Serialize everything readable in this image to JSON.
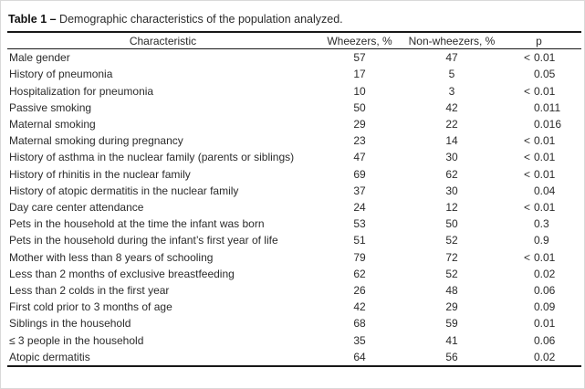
{
  "title": {
    "bold": "Table 1 –",
    "rest": " Demographic characteristics of the population analyzed."
  },
  "table": {
    "columns": [
      "Characteristic",
      "Wheezers, %",
      "Non-wheezers, %",
      "p"
    ],
    "rows": [
      {
        "characteristic": "Male gender",
        "wheezers": "57",
        "non_wheezers": "47",
        "p_prefix": "<",
        "p_value": "0.01"
      },
      {
        "characteristic": "History of pneumonia",
        "wheezers": "17",
        "non_wheezers": "5",
        "p_prefix": "",
        "p_value": "0.05"
      },
      {
        "characteristic": "Hospitalization for pneumonia",
        "wheezers": "10",
        "non_wheezers": "3",
        "p_prefix": "<",
        "p_value": "0.01"
      },
      {
        "characteristic": "Passive smoking",
        "wheezers": "50",
        "non_wheezers": "42",
        "p_prefix": "",
        "p_value": "0.011"
      },
      {
        "characteristic": "Maternal smoking",
        "wheezers": "29",
        "non_wheezers": "22",
        "p_prefix": "",
        "p_value": "0.016"
      },
      {
        "characteristic": "Maternal smoking during pregnancy",
        "wheezers": "23",
        "non_wheezers": "14",
        "p_prefix": "<",
        "p_value": "0.01"
      },
      {
        "characteristic": "History of asthma in the nuclear family (parents or siblings)",
        "wheezers": "47",
        "non_wheezers": "30",
        "p_prefix": "<",
        "p_value": "0.01"
      },
      {
        "characteristic": "History of rhinitis in the nuclear family",
        "wheezers": "69",
        "non_wheezers": "62",
        "p_prefix": "<",
        "p_value": "0.01"
      },
      {
        "characteristic": "History of atopic dermatitis in the nuclear family",
        "wheezers": "37",
        "non_wheezers": "30",
        "p_prefix": "",
        "p_value": "0.04"
      },
      {
        "characteristic": "Day care center attendance",
        "wheezers": "24",
        "non_wheezers": "12",
        "p_prefix": "<",
        "p_value": "0.01"
      },
      {
        "characteristic": "Pets in the household at the time the infant was born",
        "wheezers": "53",
        "non_wheezers": "50",
        "p_prefix": "",
        "p_value": "0.3"
      },
      {
        "characteristic": "Pets in the household during the infant’s first year of life",
        "wheezers": "51",
        "non_wheezers": "52",
        "p_prefix": "",
        "p_value": "0.9"
      },
      {
        "characteristic": "Mother with less than 8 years of schooling",
        "wheezers": "79",
        "non_wheezers": "72",
        "p_prefix": "<",
        "p_value": "0.01"
      },
      {
        "characteristic": "Less than 2 months of exclusive breastfeeding",
        "wheezers": "62",
        "non_wheezers": "52",
        "p_prefix": "",
        "p_value": "0.02"
      },
      {
        "characteristic": "Less than 2 colds in the first year",
        "wheezers": "26",
        "non_wheezers": "48",
        "p_prefix": "",
        "p_value": "0.06"
      },
      {
        "characteristic": "First cold prior to 3 months of age",
        "wheezers": "42",
        "non_wheezers": "29",
        "p_prefix": "",
        "p_value": "0.09"
      },
      {
        "characteristic": "Siblings in the household",
        "wheezers": "68",
        "non_wheezers": "59",
        "p_prefix": "",
        "p_value": "0.01"
      },
      {
        "characteristic": "≤ 3 people in the household",
        "wheezers": "35",
        "non_wheezers": "41",
        "p_prefix": "",
        "p_value": "0.06"
      },
      {
        "characteristic": "Atopic dermatitis",
        "wheezers": "64",
        "non_wheezers": "56",
        "p_prefix": "",
        "p_value": "0.02"
      }
    ]
  }
}
